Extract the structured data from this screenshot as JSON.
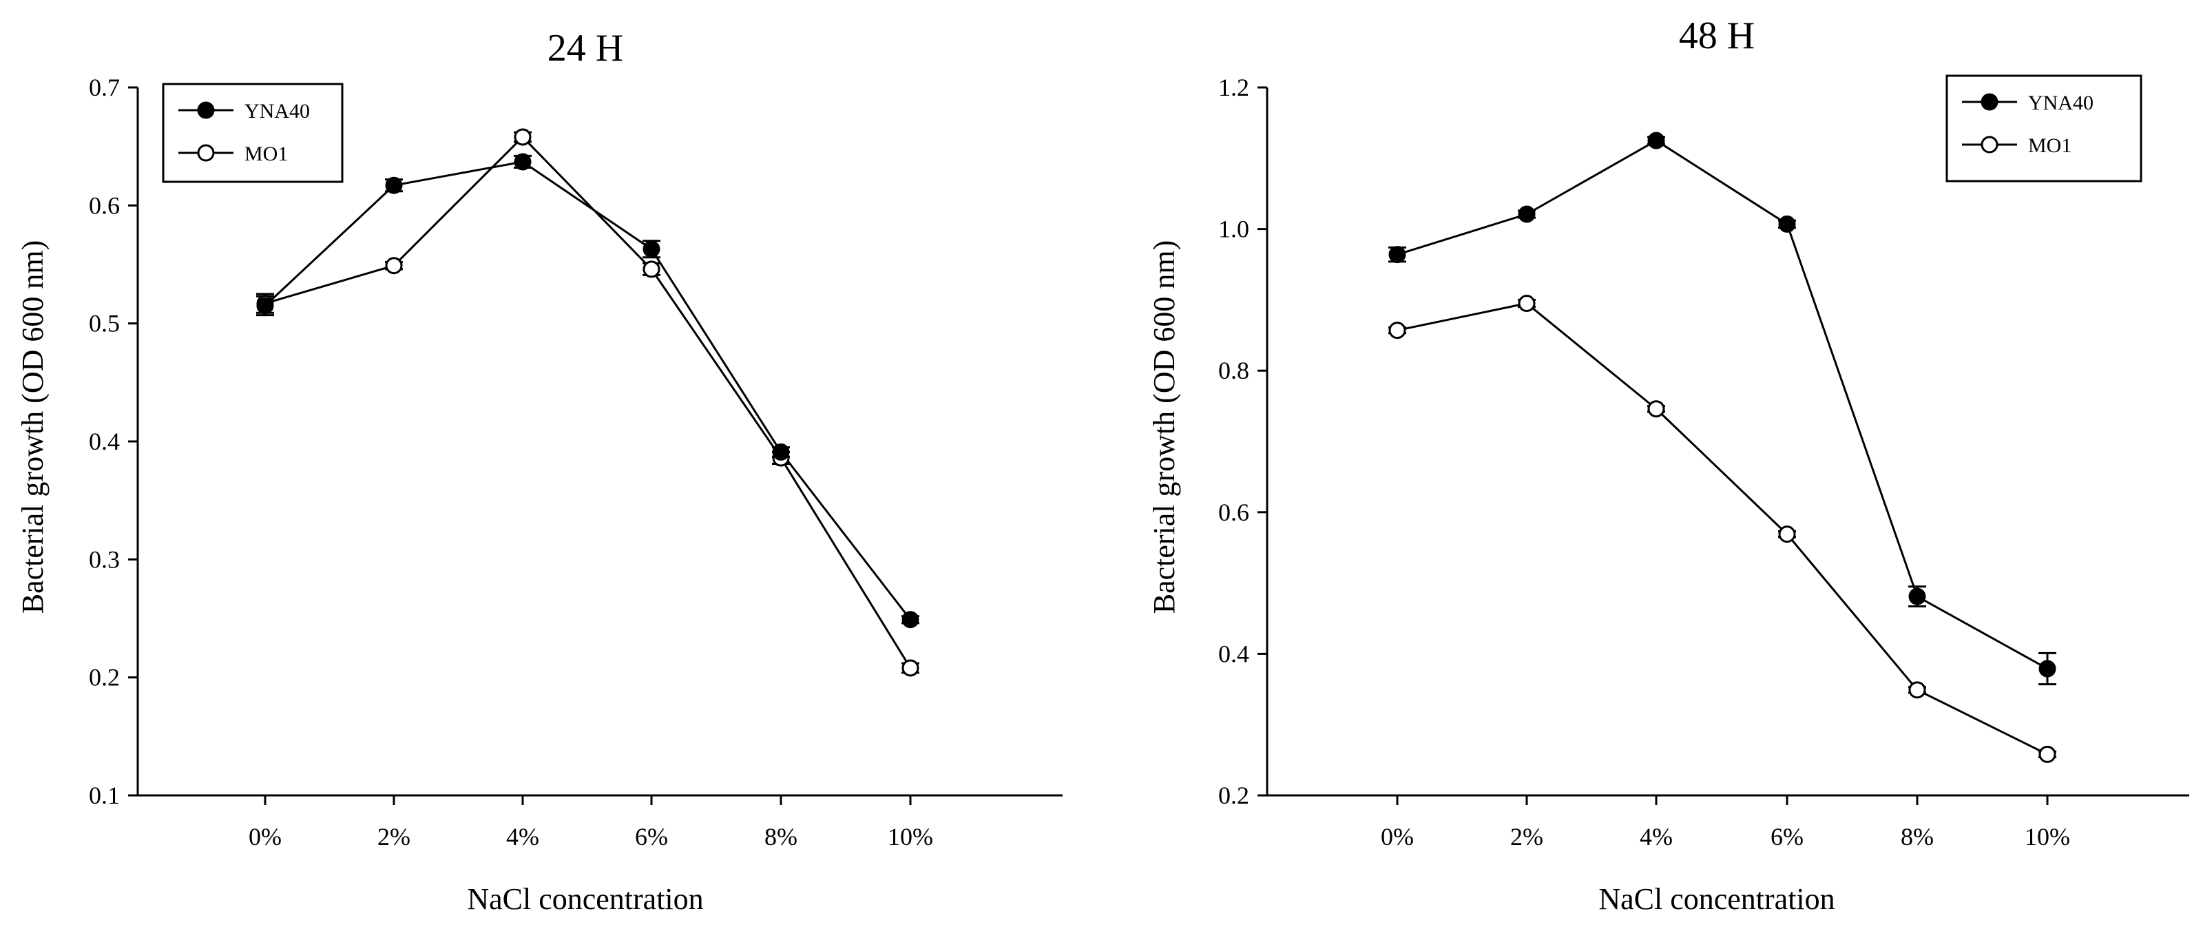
{
  "colors": {
    "axis": "#000000",
    "background": "#ffffff",
    "filled_marker": "#000000",
    "open_marker": "#ffffff"
  },
  "chart_data": [
    {
      "type": "line",
      "title": "24 H",
      "xlabel": "NaCl concentration",
      "ylabel": "Bacterial growth (OD 600 nm)",
      "categories": [
        "0%",
        "2%",
        "4%",
        "6%",
        "8%",
        "10%"
      ],
      "ylim": [
        0.1,
        0.7
      ],
      "yticks": [
        "0.1",
        "0.2",
        "0.3",
        "0.4",
        "0.5",
        "0.6",
        "0.7"
      ],
      "ytick_values": [
        0.1,
        0.2,
        0.3,
        0.4,
        0.5,
        0.6,
        0.7
      ],
      "grid": false,
      "legend_position": "top-left",
      "series": [
        {
          "name": "YNA40",
          "marker": "filled-circle",
          "values": [
            0.515,
            0.617,
            0.637,
            0.563,
            0.391,
            0.249
          ],
          "errors": [
            0.008,
            0.005,
            0.005,
            0.007,
            0.004,
            0.003
          ]
        },
        {
          "name": "MO1",
          "marker": "open-circle",
          "values": [
            0.517,
            0.549,
            0.658,
            0.546,
            0.386,
            0.208
          ],
          "errors": [
            0.008,
            0.003,
            0.004,
            0.005,
            0.005,
            0.004
          ]
        }
      ]
    },
    {
      "type": "line",
      "title": "48 H",
      "xlabel": "NaCl concentration",
      "ylabel": "Bacterial growth (OD 600 nm)",
      "categories": [
        "0%",
        "2%",
        "4%",
        "6%",
        "8%",
        "10%"
      ],
      "ylim": [
        0.2,
        1.2
      ],
      "yticks": [
        "0.2",
        "0.4",
        "0.6",
        "0.8",
        "1.0",
        "1.2"
      ],
      "ytick_values": [
        0.2,
        0.4,
        0.6,
        0.8,
        1.0,
        1.2
      ],
      "grid": false,
      "legend_position": "top-right",
      "series": [
        {
          "name": "YNA40",
          "marker": "filled-circle",
          "values": [
            0.964,
            1.021,
            1.125,
            1.007,
            0.481,
            0.379
          ],
          "errors": [
            0.01,
            0.005,
            0.005,
            0.005,
            0.014,
            0.022
          ]
        },
        {
          "name": "MO1",
          "marker": "open-circle",
          "values": [
            0.857,
            0.895,
            0.746,
            0.569,
            0.349,
            0.258
          ],
          "errors": [
            0.004,
            0.005,
            0.004,
            0.004,
            0.004,
            0.004
          ]
        }
      ]
    }
  ]
}
